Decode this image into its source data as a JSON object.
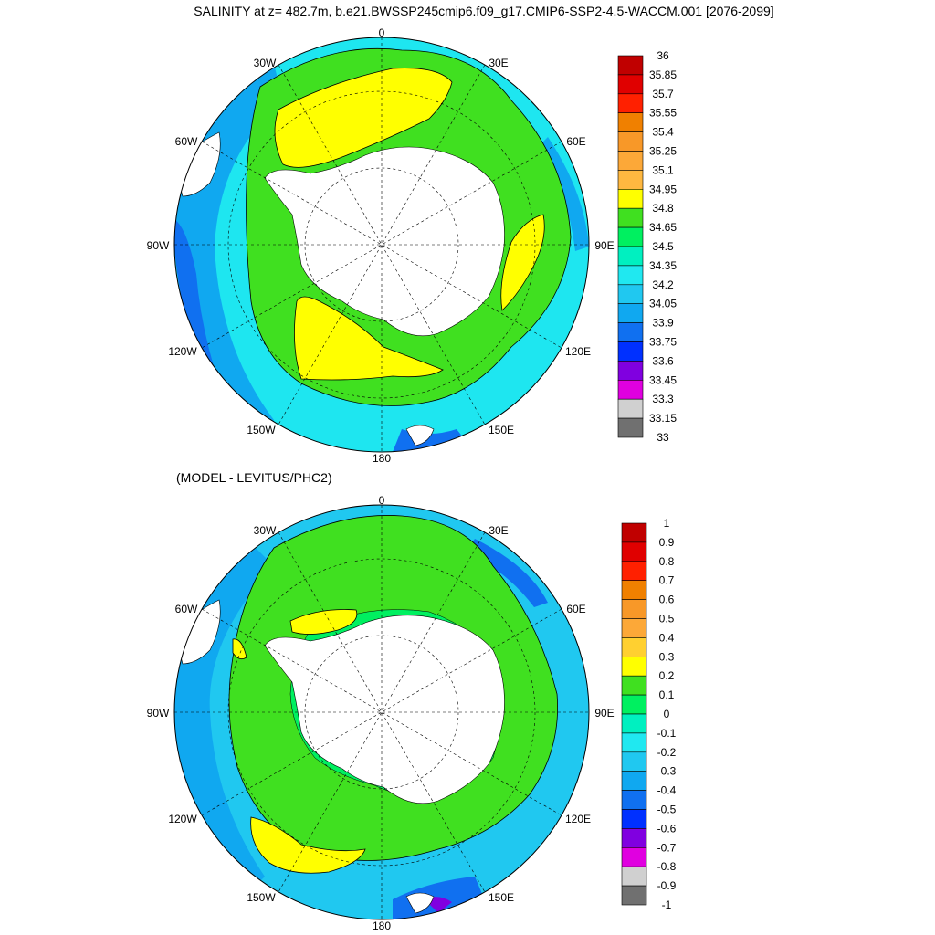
{
  "title": "SALINITY at z= 482.7m, b.e21.BWSSP245cmip6.f09_g17.CMIP6-SSP2-4.5-WACCM.001 [2076-2099]",
  "subtitle": "(MODEL - LEVITUS/PHC2)",
  "lon_labels": [
    "0",
    "30E",
    "60E",
    "90E",
    "120E",
    "150E",
    "180",
    "150W",
    "120W",
    "90W",
    "60W",
    "30W"
  ],
  "palette": {
    "ocean_fill": "#1ee6f0",
    "land": "#ffffff",
    "grid_line": "#000000",
    "coast_line": "#000000"
  },
  "top_colorbar": {
    "labels": [
      "36",
      "35.85",
      "35.7",
      "35.55",
      "35.4",
      "35.25",
      "35.1",
      "34.95",
      "34.8",
      "34.65",
      "34.5",
      "34.35",
      "34.2",
      "34.05",
      "33.9",
      "33.75",
      "33.6",
      "33.45",
      "33.3",
      "33.15",
      "33"
    ],
    "colors": [
      "#c00000",
      "#e00000",
      "#ff2000",
      "#f08000",
      "#f89828",
      "#fca838",
      "#ffb840",
      "#ffff00",
      "#40e020",
      "#00f060",
      "#00f0c0",
      "#20e8f0",
      "#20c8f0",
      "#10a8f0",
      "#1070f0",
      "#0030ff",
      "#8000e0",
      "#e000e0",
      "#d0d0d0",
      "#707070"
    ]
  },
  "bottom_colorbar": {
    "labels": [
      "1",
      "0.9",
      "0.8",
      "0.7",
      "0.6",
      "0.5",
      "0.4",
      "0.3",
      "0.2",
      "0.1",
      "0",
      "-0.1",
      "-0.2",
      "-0.3",
      "-0.4",
      "-0.5",
      "-0.6",
      "-0.7",
      "-0.8",
      "-0.9",
      "-1"
    ],
    "colors": [
      "#c00000",
      "#e00000",
      "#ff2000",
      "#f08000",
      "#f89828",
      "#fca838",
      "#ffd030",
      "#ffff00",
      "#40e020",
      "#00f060",
      "#00f0c0",
      "#20e8f0",
      "#20c8f0",
      "#10a8f0",
      "#1070f0",
      "#0030ff",
      "#8000e0",
      "#e000e0",
      "#d0d0d0",
      "#707070"
    ]
  }
}
